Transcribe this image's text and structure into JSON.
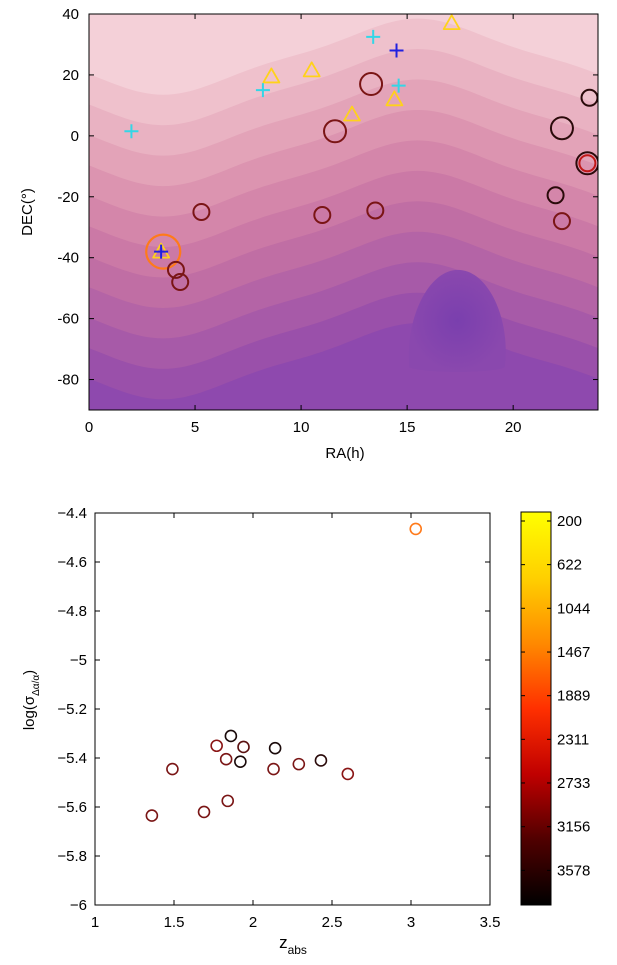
{
  "chart_data": [
    {
      "type": "scatter",
      "title": "",
      "xlabel": "RA(h)",
      "ylabel": "DEC(°)",
      "xlim": [
        0,
        24
      ],
      "ylim": [
        -90,
        40
      ],
      "x_ticks": [
        0,
        5,
        10,
        15,
        20
      ],
      "y_ticks": [
        40,
        20,
        0,
        -20,
        -40,
        -60,
        -80
      ],
      "x_tick_labels": [
        "0",
        "5",
        "10",
        "15",
        "20"
      ],
      "y_tick_labels": [
        "40",
        "20",
        "0",
        "-20",
        "-40",
        "-60",
        "-80"
      ],
      "background": "filled contour map, light pink (top) to purple (bottom), minimum near RA 17h, DEC -60°",
      "marker_colors": {
        "circle_dark_red": "#7a1515",
        "circle_black": "#2a0a0a",
        "circle_red": "#c01818",
        "circle_orange": "#ff7a1a",
        "triangle": "#ffd21a",
        "plus_cyan": "#33d6e6",
        "plus_blue": "#2020e0"
      },
      "circles": [
        {
          "x": 3.5,
          "y": -38,
          "size": "large",
          "color": "circle_orange"
        },
        {
          "x": 4.1,
          "y": -44,
          "size": "small",
          "color": "circle_dark_red"
        },
        {
          "x": 4.3,
          "y": -48,
          "size": "small",
          "color": "circle_dark_red"
        },
        {
          "x": 5.3,
          "y": -25,
          "size": "small",
          "color": "circle_dark_red"
        },
        {
          "x": 11.0,
          "y": -26,
          "size": "small",
          "color": "circle_dark_red"
        },
        {
          "x": 11.6,
          "y": 1.5,
          "size": "medium",
          "color": "circle_dark_red"
        },
        {
          "x": 13.3,
          "y": 17,
          "size": "medium",
          "color": "circle_dark_red"
        },
        {
          "x": 13.5,
          "y": -24.5,
          "size": "small",
          "color": "circle_dark_red"
        },
        {
          "x": 22.0,
          "y": -19.5,
          "size": "small",
          "color": "circle_black"
        },
        {
          "x": 22.3,
          "y": 2.5,
          "size": "medium",
          "color": "circle_black"
        },
        {
          "x": 22.3,
          "y": -28,
          "size": "small",
          "color": "circle_dark_red"
        },
        {
          "x": 23.6,
          "y": 12.5,
          "size": "small",
          "color": "circle_black"
        },
        {
          "x": 23.5,
          "y": -9,
          "size": "medium",
          "color": "circle_black"
        },
        {
          "x": 23.5,
          "y": -9,
          "size": "small",
          "color": "circle_red"
        }
      ],
      "triangles": [
        {
          "x": 3.4,
          "y": -38
        },
        {
          "x": 8.6,
          "y": 19.5
        },
        {
          "x": 10.5,
          "y": 21.5
        },
        {
          "x": 12.4,
          "y": 7
        },
        {
          "x": 14.4,
          "y": 12
        },
        {
          "x": 17.1,
          "y": 37
        }
      ],
      "plus_markers": [
        {
          "x": 2.0,
          "y": 1.5,
          "color": "plus_cyan"
        },
        {
          "x": 8.2,
          "y": 15,
          "color": "plus_cyan"
        },
        {
          "x": 13.4,
          "y": 32.5,
          "color": "plus_cyan"
        },
        {
          "x": 14.6,
          "y": 16.5,
          "color": "plus_cyan"
        },
        {
          "x": 14.5,
          "y": 28,
          "color": "plus_blue"
        },
        {
          "x": 3.4,
          "y": -38,
          "color": "plus_blue"
        }
      ]
    },
    {
      "type": "scatter",
      "title": "",
      "xlabel": "z_abs",
      "xlabel_main": "z",
      "xlabel_sub": "abs",
      "ylabel": "log(σ_Δα/α)",
      "ylabel_main": "log(σ",
      "ylabel_sub": "Δα/α",
      "ylabel_close": ")",
      "xlim": [
        1,
        3.5
      ],
      "ylim": [
        -6,
        -4.4
      ],
      "x_ticks": [
        1,
        1.5,
        2,
        2.5,
        3,
        3.5
      ],
      "y_ticks": [
        -4.4,
        -4.6,
        -4.8,
        -5,
        -5.2,
        -5.4,
        -5.6,
        -5.8,
        -6
      ],
      "x_tick_labels": [
        "1",
        "1.5",
        "2",
        "2.5",
        "3",
        "3.5"
      ],
      "y_tick_labels": [
        "−4.4",
        "−4.6",
        "−4.8",
        "−5",
        "−5.2",
        "−5.4",
        "−5.6",
        "−5.8",
        "−6"
      ],
      "points": [
        {
          "x": 1.36,
          "y": -5.635,
          "color": "#7a1515"
        },
        {
          "x": 1.49,
          "y": -5.445,
          "color": "#7a1515"
        },
        {
          "x": 1.69,
          "y": -5.62,
          "color": "#7a1515"
        },
        {
          "x": 1.77,
          "y": -5.35,
          "color": "#8a1515"
        },
        {
          "x": 1.83,
          "y": -5.405,
          "color": "#7a1515"
        },
        {
          "x": 1.84,
          "y": -5.575,
          "color": "#7a1515"
        },
        {
          "x": 1.86,
          "y": -5.31,
          "color": "#1a0a0a"
        },
        {
          "x": 1.92,
          "y": -5.415,
          "color": "#1a0a0a"
        },
        {
          "x": 1.94,
          "y": -5.355,
          "color": "#5a1010"
        },
        {
          "x": 2.13,
          "y": -5.445,
          "color": "#7a1515"
        },
        {
          "x": 2.14,
          "y": -5.36,
          "color": "#1a0a0a"
        },
        {
          "x": 2.29,
          "y": -5.425,
          "color": "#7a1515"
        },
        {
          "x": 2.43,
          "y": -5.41,
          "color": "#2a0a0a"
        },
        {
          "x": 2.6,
          "y": -5.465,
          "color": "#8a1515"
        },
        {
          "x": 3.03,
          "y": -4.465,
          "color": "#ff7a1a"
        }
      ],
      "colorbar": {
        "tick_labels": [
          "200",
          "622",
          "1044",
          "1467",
          "1889",
          "2311",
          "2733",
          "3156",
          "3578"
        ],
        "tick_values": [
          200,
          622,
          1044,
          1467,
          1889,
          2311,
          2733,
          3156,
          3578
        ],
        "range": [
          200,
          4000
        ],
        "colors_top_to_bottom": [
          "#ffff00",
          "#ffd000",
          "#ff8a00",
          "#ff3000",
          "#c00000",
          "#500000",
          "#000000"
        ]
      }
    }
  ]
}
